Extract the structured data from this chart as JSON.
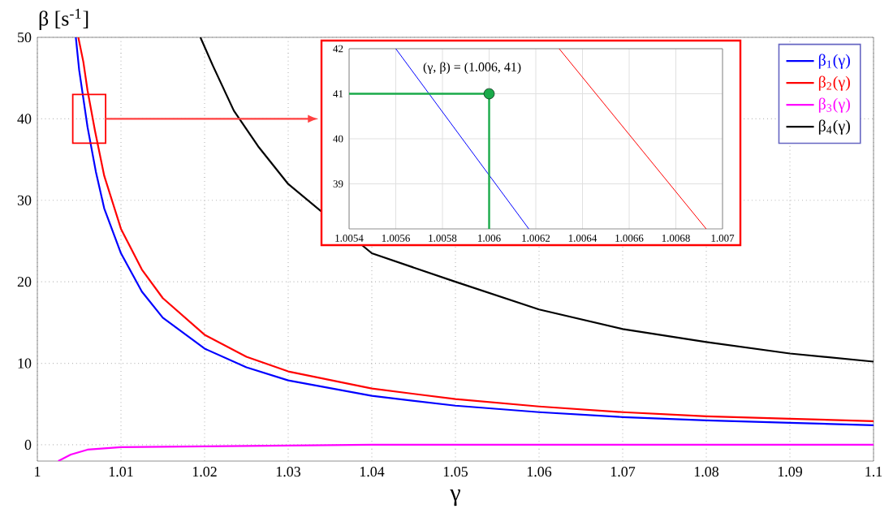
{
  "chart_data": [
    {
      "type": "line",
      "xlabel": "γ",
      "ylabel": "β [s$^{-1}$]",
      "xlim": [
        1,
        1.1
      ],
      "ylim": [
        -2,
        50
      ],
      "xticks": [
        1,
        1.01,
        1.02,
        1.03,
        1.04,
        1.05,
        1.06,
        1.07,
        1.08,
        1.09,
        1.1
      ],
      "yticks": [
        0,
        10,
        20,
        30,
        40,
        50
      ],
      "grid": true,
      "legend": "top right",
      "series": [
        {
          "name": "β$_{1}$(γ)",
          "color": "#0000ff",
          "x": [
            1.0046,
            1.005,
            1.006,
            1.007,
            1.008,
            1.01,
            1.0125,
            1.015,
            1.02,
            1.025,
            1.03,
            1.04,
            1.05,
            1.06,
            1.07,
            1.08,
            1.09,
            1.1
          ],
          "values": [
            50,
            46,
            39,
            33.5,
            29,
            23.5,
            18.8,
            15.6,
            11.8,
            9.5,
            7.9,
            6,
            4.8,
            4,
            3.4,
            3,
            2.7,
            2.4
          ]
        },
        {
          "name": "β$_{2}$(γ)",
          "color": "#ff0000",
          "x": [
            1.0049,
            1.0055,
            1.006,
            1.0069,
            1.008,
            1.01,
            1.0125,
            1.015,
            1.02,
            1.025,
            1.03,
            1.04,
            1.05,
            1.06,
            1.07,
            1.08,
            1.09,
            1.1
          ],
          "values": [
            50,
            47,
            43.5,
            38.5,
            33,
            26.5,
            21.5,
            18,
            13.5,
            10.8,
            9,
            6.9,
            5.6,
            4.7,
            4,
            3.5,
            3.2,
            2.9
          ]
        },
        {
          "name": "β$_{3}$(γ)",
          "color": "#ff00ff",
          "x": [
            1.0025,
            1.004,
            1.006,
            1.01,
            1.02,
            1.04,
            1.1
          ],
          "values": [
            -2,
            -1.2,
            -0.6,
            -0.3,
            -0.2,
            0,
            0
          ]
        },
        {
          "name": "β$_{4}$(γ)",
          "color": "#000000",
          "x": [
            1.0195,
            1.021,
            1.0235,
            1.0265,
            1.03,
            1.04,
            1.05,
            1.06,
            1.07,
            1.08,
            1.09,
            1.1
          ],
          "values": [
            50,
            46.5,
            41,
            36.5,
            32,
            23.5,
            20,
            16.6,
            14.2,
            12.6,
            11.2,
            10.2
          ]
        }
      ]
    },
    {
      "type": "line",
      "xlim": [
        1.0054,
        1.007
      ],
      "ylim": [
        38,
        42
      ],
      "xticks": [
        1.0054,
        1.0056,
        1.0058,
        1.006,
        1.0062,
        1.0064,
        1.0066,
        1.0068,
        1.007
      ],
      "yticks": [
        39,
        40,
        41,
        42
      ],
      "grid": true,
      "annotations": [
        {
          "text": "(γ, β) = (1.006, 41)",
          "x": 1.006,
          "y": 41
        }
      ],
      "series": [
        {
          "color": "#0000ff",
          "x": [
            1.0056,
            1.00617
          ],
          "values": [
            42,
            38
          ]
        },
        {
          "color": "#ff0000",
          "x": [
            1.0063,
            1.00693
          ],
          "values": [
            42,
            38
          ]
        },
        {
          "color": "#1aaa4a",
          "x": [
            1.0054,
            1.006,
            1.006
          ],
          "values": [
            41,
            41,
            38
          ]
        },
        {
          "type": "scatter",
          "marker": "circle",
          "color": "#1aaa4a",
          "x": [
            1.006
          ],
          "values": [
            41
          ]
        }
      ]
    }
  ]
}
